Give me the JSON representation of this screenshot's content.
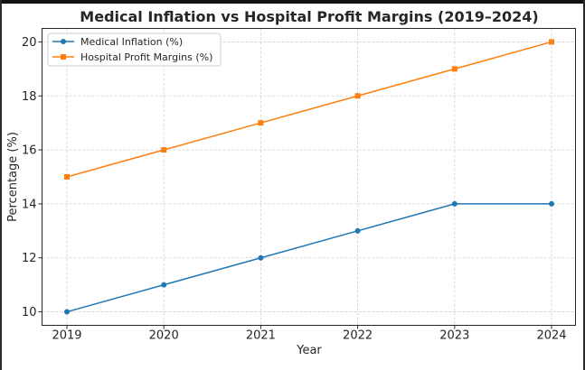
{
  "chart_data": {
    "type": "line",
    "title": "Medical Inflation vs Hospital Profit Margins (2019–2024)",
    "xlabel": "Year",
    "ylabel": "Percentage (%)",
    "categories": [
      "2019",
      "2020",
      "2021",
      "2022",
      "2023",
      "2024"
    ],
    "ylim": [
      9.5,
      20.5
    ],
    "yticks": [
      10,
      12,
      14,
      16,
      18,
      20
    ],
    "grid": true,
    "legend_position": "upper-left",
    "series": [
      {
        "name": "Medical Inflation (%)",
        "values": [
          10,
          11,
          12,
          13,
          14,
          14
        ],
        "color": "#1f77b4",
        "marker": "circle"
      },
      {
        "name": "Hospital Profit Margins (%)",
        "values": [
          15,
          16,
          17,
          18,
          19,
          20
        ],
        "color": "#ff7f0e",
        "marker": "square"
      }
    ]
  }
}
